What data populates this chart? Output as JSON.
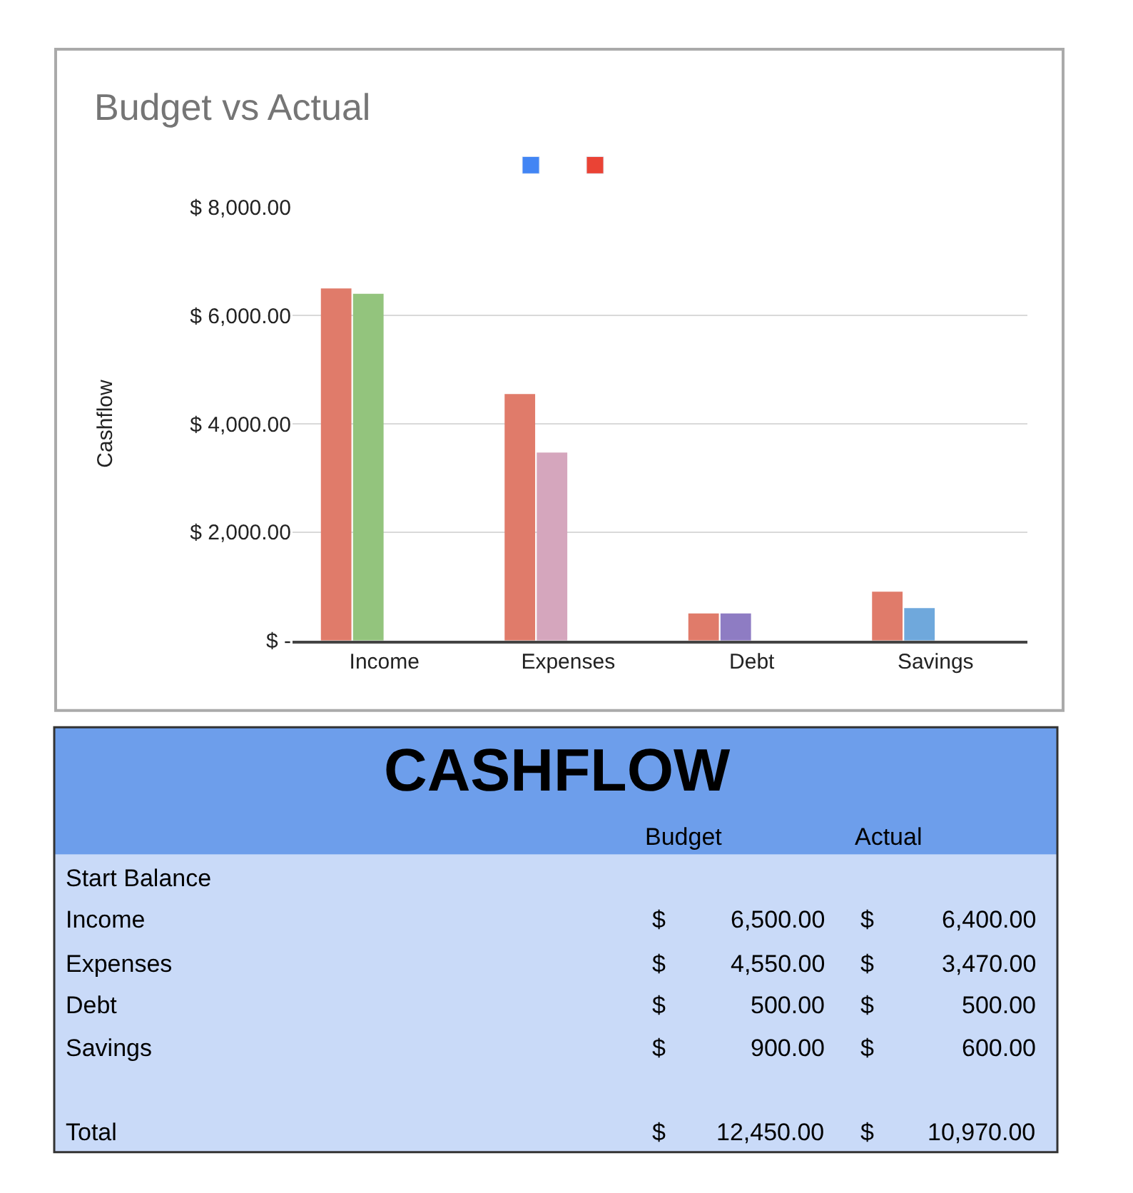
{
  "chart_data": {
    "type": "bar",
    "title": "Budget vs Actual",
    "ylabel": "Cashflow",
    "categories": [
      "Income",
      "Expenses",
      "Debt",
      "Savings"
    ],
    "series": [
      {
        "color": "#4285f4",
        "colors": [
          "#e07b6a",
          "#e07b6a",
          "#e07b6a",
          "#e07b6a"
        ],
        "values": [
          6500,
          4550,
          500,
          900
        ],
        "value_labels": [
          "$ 6,500.00",
          "$ 4,550.00",
          "$ 500.00",
          "$ 900.00"
        ]
      },
      {
        "color": "#ea4335",
        "colors": [
          "#93c47d",
          "#d5a6bd",
          "#8e7cc3",
          "#6fa8dc"
        ],
        "values": [
          6400,
          3470,
          500,
          600
        ],
        "value_labels": [
          "$ 6,400.00",
          "$ 3,470.00",
          "$ 500.00",
          "$ 600.00"
        ]
      }
    ],
    "ylim": [
      0,
      8000
    ],
    "yticks": [
      {
        "value": 0,
        "label": "$ -"
      },
      {
        "value": 2000,
        "label": "$ 2,000.00"
      },
      {
        "value": 4000,
        "label": "$ 4,000.00"
      },
      {
        "value": 6000,
        "label": "$ 6,000.00"
      },
      {
        "value": 8000,
        "label": "$ 8,000.00"
      }
    ],
    "grid": "y",
    "annotations": [
      "CASHFLOW",
      "Budget",
      "Actual",
      "Start Balance",
      "Total",
      "$ 12,450.00",
      "$ 10,970.00"
    ]
  }
}
